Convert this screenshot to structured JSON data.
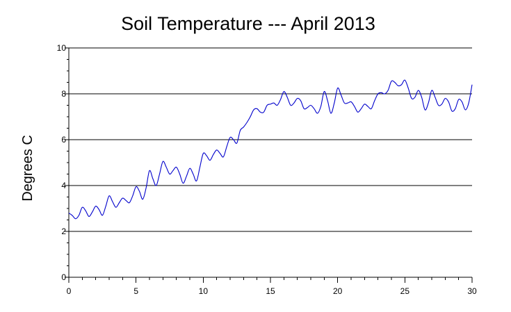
{
  "chart_data": {
    "type": "line",
    "title": "Soil Temperature --- April 2013",
    "xlabel": "",
    "ylabel": "Degrees C",
    "xlim": [
      0,
      30
    ],
    "ylim": [
      0,
      10
    ],
    "x_ticks": [
      0,
      5,
      10,
      15,
      20,
      25,
      30
    ],
    "y_ticks": [
      0,
      2,
      4,
      6,
      8,
      10
    ],
    "grid": "horizontal",
    "legend": "none",
    "line_color": "#0000cc",
    "series": [
      {
        "x": [
          0,
          0.25,
          0.5,
          0.75,
          1,
          1.25,
          1.5,
          1.75,
          2,
          2.25,
          2.5,
          2.75,
          3,
          3.25,
          3.5,
          3.75,
          4,
          4.25,
          4.5,
          4.75,
          5,
          5.25,
          5.5,
          5.75,
          6,
          6.25,
          6.5,
          6.75,
          7,
          7.25,
          7.5,
          7.75,
          8,
          8.25,
          8.5,
          8.75,
          9,
          9.25,
          9.5,
          9.75,
          10,
          10.25,
          10.5,
          10.75,
          11,
          11.25,
          11.5,
          11.75,
          12,
          12.25,
          12.5,
          12.75,
          13,
          13.25,
          13.5,
          13.75,
          14,
          14.25,
          14.5,
          14.75,
          15,
          15.25,
          15.5,
          15.75,
          16,
          16.25,
          16.5,
          16.75,
          17,
          17.25,
          17.5,
          17.75,
          18,
          18.25,
          18.5,
          18.75,
          19,
          19.25,
          19.5,
          19.75,
          20,
          20.25,
          20.5,
          20.75,
          21,
          21.25,
          21.5,
          21.75,
          22,
          22.25,
          22.5,
          22.75,
          23,
          23.25,
          23.5,
          23.75,
          24,
          24.25,
          24.5,
          24.75,
          25,
          25.25,
          25.5,
          25.75,
          26,
          26.25,
          26.5,
          26.75,
          27,
          27.25,
          27.5,
          27.75,
          28,
          28.25,
          28.5,
          28.75,
          29,
          29.25,
          29.5,
          29.75,
          30
        ],
        "y": [
          2.8,
          2.7,
          2.55,
          2.7,
          3.05,
          2.9,
          2.65,
          2.85,
          3.1,
          2.95,
          2.7,
          3.1,
          3.55,
          3.3,
          3.05,
          3.25,
          3.45,
          3.35,
          3.25,
          3.55,
          3.95,
          3.75,
          3.4,
          3.9,
          4.65,
          4.3,
          4.0,
          4.5,
          5.05,
          4.8,
          4.5,
          4.65,
          4.8,
          4.5,
          4.1,
          4.4,
          4.75,
          4.5,
          4.2,
          4.8,
          5.4,
          5.3,
          5.1,
          5.35,
          5.55,
          5.4,
          5.25,
          5.7,
          6.1,
          6.0,
          5.85,
          6.4,
          6.55,
          6.75,
          7.0,
          7.3,
          7.35,
          7.2,
          7.2,
          7.5,
          7.55,
          7.6,
          7.5,
          7.75,
          8.1,
          7.85,
          7.5,
          7.6,
          7.8,
          7.7,
          7.35,
          7.4,
          7.5,
          7.35,
          7.15,
          7.45,
          8.1,
          7.7,
          7.15,
          7.6,
          8.25,
          7.95,
          7.6,
          7.6,
          7.65,
          7.45,
          7.2,
          7.35,
          7.55,
          7.45,
          7.35,
          7.7,
          8.0,
          8.05,
          8.0,
          8.15,
          8.55,
          8.5,
          8.35,
          8.4,
          8.6,
          8.25,
          7.8,
          7.85,
          8.15,
          7.85,
          7.3,
          7.6,
          8.15,
          7.85,
          7.5,
          7.55,
          7.8,
          7.65,
          7.25,
          7.35,
          7.75,
          7.65,
          7.3,
          7.6,
          8.4
        ]
      }
    ]
  }
}
